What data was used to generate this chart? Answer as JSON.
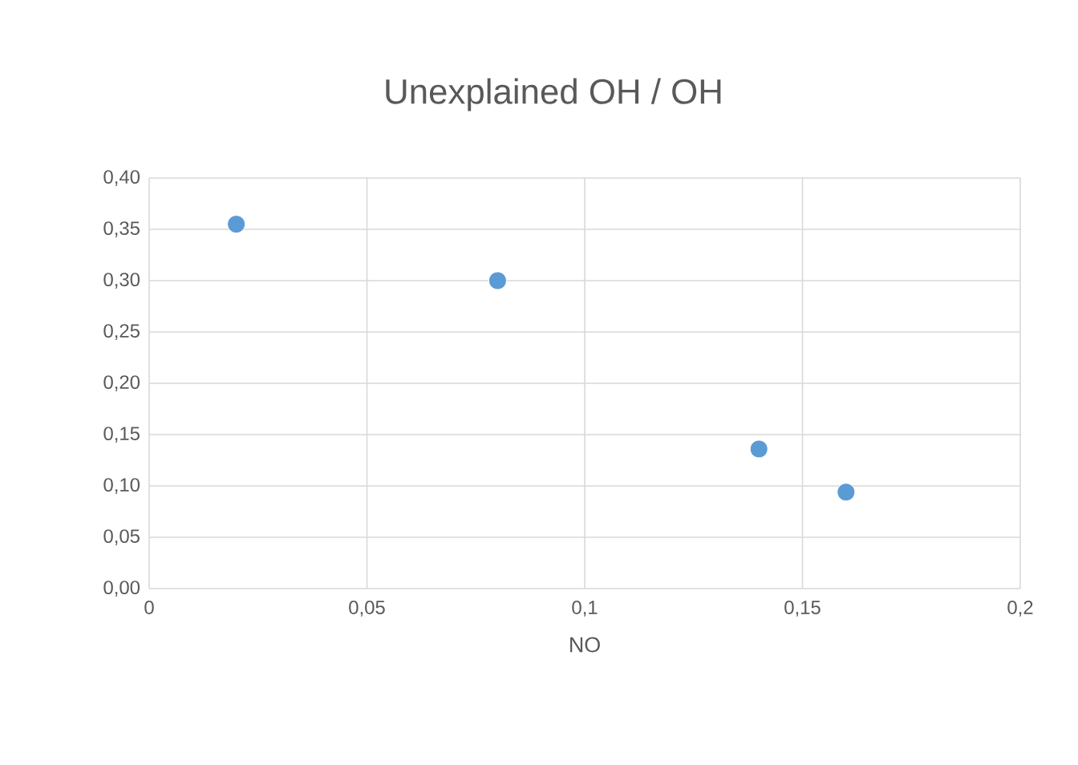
{
  "chart_data": {
    "type": "scatter",
    "title": "Unexplained OH / OH",
    "xlabel": "NO",
    "series": [
      {
        "color": "#5b9bd5",
        "x": [
          0.02,
          0.08,
          0.14,
          0.16
        ],
        "values": [
          0.355,
          0.3,
          0.136,
          0.094
        ]
      }
    ],
    "xlim": [
      0,
      0.2
    ],
    "xticks": [
      0,
      {
        "value": 0.05,
        "label": "0,05"
      },
      {
        "value": 0.1,
        "label": "0,1"
      },
      {
        "value": 0.15,
        "label": "0,15"
      },
      {
        "value": 0.2,
        "label": "0,2"
      }
    ],
    "ylim": [
      0,
      0.4
    ],
    "yticks": [
      {
        "value": 0,
        "label": "0,00"
      },
      {
        "value": 0.05,
        "label": "0,05"
      },
      {
        "value": 0.1,
        "label": "0,10"
      },
      {
        "value": 0.15,
        "label": "0,15"
      },
      {
        "value": 0.2,
        "label": "0,20"
      },
      {
        "value": 0.25,
        "label": "0,25"
      },
      {
        "value": 0.3,
        "label": "0,30"
      },
      {
        "value": 0.35,
        "label": "0,35"
      },
      {
        "value": 0.4,
        "label": "0,40"
      }
    ],
    "grid": true,
    "marker": "circle"
  }
}
